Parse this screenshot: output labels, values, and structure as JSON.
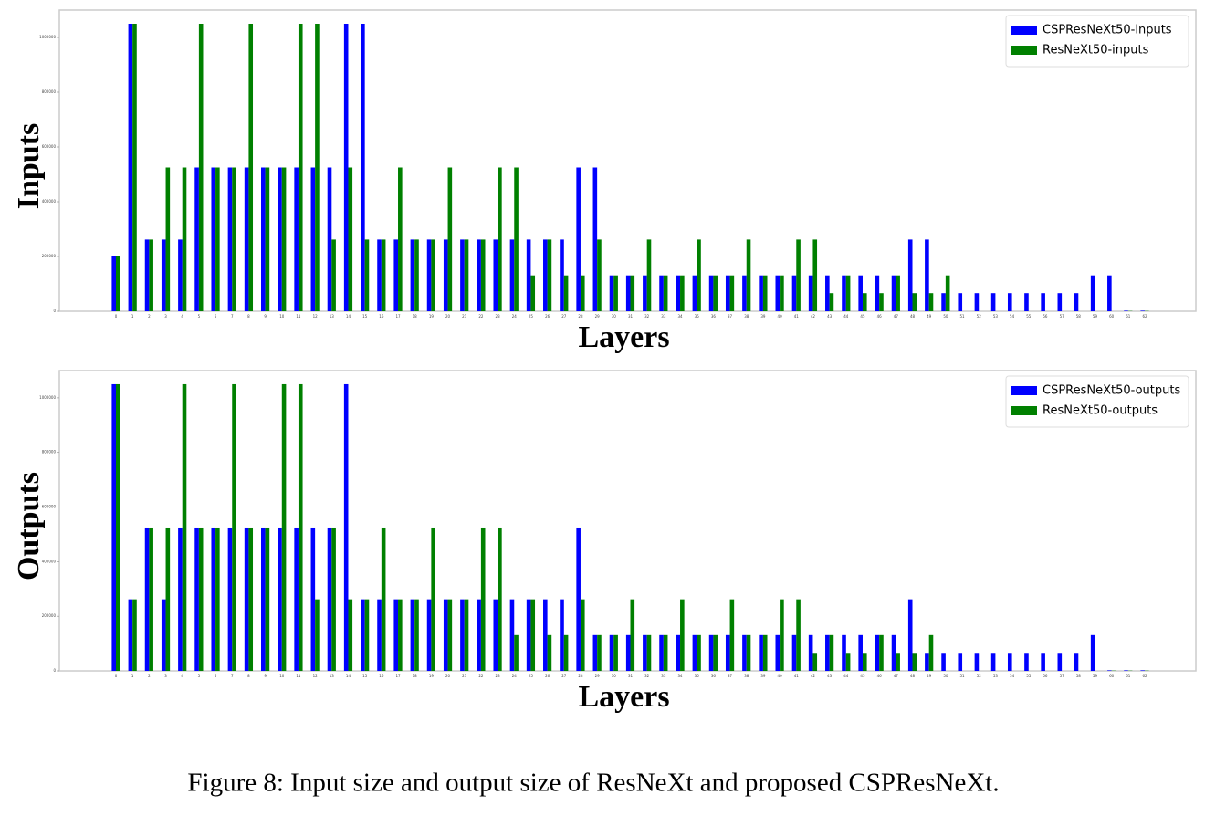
{
  "chart_data": [
    {
      "type": "bar",
      "ylabel": "Inputs",
      "xlabel": "Layers",
      "categories": [
        "0",
        "1",
        "2",
        "3",
        "4",
        "5",
        "6",
        "7",
        "8",
        "9",
        "10",
        "11",
        "12",
        "13",
        "14",
        "15",
        "16",
        "17",
        "18",
        "19",
        "20",
        "21",
        "22",
        "23",
        "24",
        "25",
        "26",
        "27",
        "28",
        "29",
        "30",
        "31",
        "32",
        "33",
        "34",
        "35",
        "36",
        "37",
        "38",
        "39",
        "40",
        "41",
        "42",
        "43",
        "44",
        "45",
        "46",
        "47",
        "48",
        "49",
        "50",
        "51",
        "52",
        "53",
        "54",
        "55",
        "56",
        "57",
        "58",
        "59",
        "60",
        "61",
        "62"
      ],
      "series": [
        {
          "name": "CSPResNeXt50-inputs",
          "color": "#0000ff",
          "values": [
            200000,
            1050000,
            262000,
            262000,
            262000,
            525000,
            525000,
            525000,
            525000,
            525000,
            525000,
            525000,
            525000,
            525000,
            1050000,
            1050000,
            262000,
            262000,
            262000,
            262000,
            262000,
            262000,
            262000,
            262000,
            262000,
            262000,
            262000,
            262000,
            525000,
            525000,
            131000,
            131000,
            131000,
            131000,
            131000,
            131000,
            131000,
            131000,
            131000,
            131000,
            131000,
            131000,
            131000,
            131000,
            131000,
            131000,
            131000,
            131000,
            262000,
            262000,
            66000,
            66000,
            66000,
            66000,
            66000,
            66000,
            66000,
            66000,
            66000,
            131000,
            131000,
            2000,
            2000
          ]
        },
        {
          "name": "ResNeXt50-inputs",
          "color": "#008000",
          "values": [
            200000,
            1050000,
            262000,
            525000,
            525000,
            1050000,
            525000,
            525000,
            1050000,
            525000,
            525000,
            1050000,
            1050000,
            262000,
            525000,
            262000,
            262000,
            525000,
            262000,
            262000,
            525000,
            262000,
            262000,
            525000,
            525000,
            131000,
            262000,
            131000,
            131000,
            262000,
            131000,
            131000,
            262000,
            131000,
            131000,
            262000,
            131000,
            131000,
            262000,
            131000,
            131000,
            262000,
            262000,
            66000,
            131000,
            66000,
            66000,
            131000,
            66000,
            66000,
            131000,
            0,
            0,
            0,
            0,
            0,
            0,
            0,
            0,
            0,
            0,
            1000,
            1000
          ]
        }
      ],
      "ylim": [
        0,
        1100000
      ],
      "yticks": [
        0,
        200000,
        400000,
        600000,
        800000,
        1000000
      ],
      "legend": "upper right"
    },
    {
      "type": "bar",
      "ylabel": "Outputs",
      "xlabel": "Layers",
      "categories": [
        "0",
        "1",
        "2",
        "3",
        "4",
        "5",
        "6",
        "7",
        "8",
        "9",
        "10",
        "11",
        "12",
        "13",
        "14",
        "15",
        "16",
        "17",
        "18",
        "19",
        "20",
        "21",
        "22",
        "23",
        "24",
        "25",
        "26",
        "27",
        "28",
        "29",
        "30",
        "31",
        "32",
        "33",
        "34",
        "35",
        "36",
        "37",
        "38",
        "39",
        "40",
        "41",
        "42",
        "43",
        "44",
        "45",
        "46",
        "47",
        "48",
        "49",
        "50",
        "51",
        "52",
        "53",
        "54",
        "55",
        "56",
        "57",
        "58",
        "59",
        "60",
        "61",
        "62"
      ],
      "series": [
        {
          "name": "CSPResNeXt50-outputs",
          "color": "#0000ff",
          "values": [
            1050000,
            262000,
            525000,
            262000,
            525000,
            525000,
            525000,
            525000,
            525000,
            525000,
            525000,
            525000,
            525000,
            525000,
            1050000,
            262000,
            262000,
            262000,
            262000,
            262000,
            262000,
            262000,
            262000,
            262000,
            262000,
            262000,
            262000,
            262000,
            525000,
            131000,
            131000,
            131000,
            131000,
            131000,
            131000,
            131000,
            131000,
            131000,
            131000,
            131000,
            131000,
            131000,
            131000,
            131000,
            131000,
            131000,
            131000,
            131000,
            262000,
            66000,
            66000,
            66000,
            66000,
            66000,
            66000,
            66000,
            66000,
            66000,
            66000,
            131000,
            2000,
            2000,
            2000
          ]
        },
        {
          "name": "ResNeXt50-outputs",
          "color": "#008000",
          "values": [
            1050000,
            262000,
            525000,
            525000,
            1050000,
            525000,
            525000,
            1050000,
            525000,
            525000,
            1050000,
            1050000,
            262000,
            525000,
            262000,
            262000,
            525000,
            262000,
            262000,
            525000,
            262000,
            262000,
            525000,
            525000,
            131000,
            262000,
            131000,
            131000,
            262000,
            131000,
            131000,
            262000,
            131000,
            131000,
            262000,
            131000,
            131000,
            262000,
            131000,
            131000,
            262000,
            262000,
            66000,
            131000,
            66000,
            66000,
            131000,
            66000,
            66000,
            131000,
            0,
            0,
            0,
            0,
            0,
            0,
            0,
            0,
            0,
            0,
            1000,
            1000,
            1000
          ]
        }
      ],
      "ylim": [
        0,
        1100000
      ],
      "yticks": [
        0,
        200000,
        400000,
        600000,
        800000,
        1000000
      ],
      "legend": "upper right"
    }
  ],
  "caption": "Figure 8: Input size and output size of ResNeXt and proposed CSPResNeXt."
}
